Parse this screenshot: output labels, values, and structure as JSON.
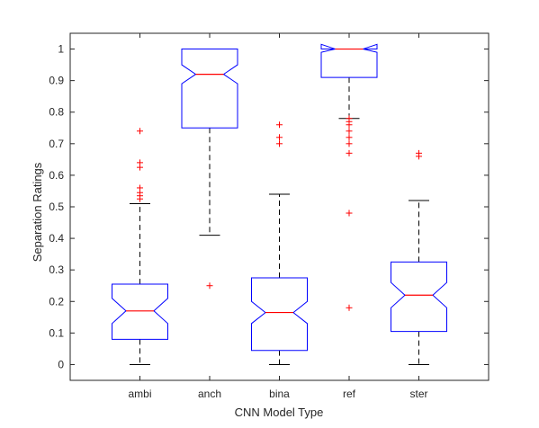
{
  "chart_data": {
    "type": "boxplot",
    "notched": true,
    "xlabel": "CNN Model Type",
    "ylabel": "Separation Ratings",
    "ylim": [
      -0.05,
      1.05
    ],
    "yticks": [
      0,
      0.1,
      0.2,
      0.3,
      0.4,
      0.5,
      0.6,
      0.7,
      0.8,
      0.9,
      1
    ],
    "ytick_labels": [
      "0",
      "0.1",
      "0.2",
      "0.3",
      "0.4",
      "0.5",
      "0.6",
      "0.7",
      "0.8",
      "0.9",
      "1"
    ],
    "categories": [
      "ambi",
      "anch",
      "bina",
      "ref",
      "ster"
    ],
    "grid": false,
    "colors": {
      "box": "#0000ff",
      "median": "#ff0000",
      "whisker": "#000000",
      "outlier": "#ff0000",
      "axis": "#262626"
    },
    "boxes": [
      {
        "category": "ambi",
        "q1": 0.08,
        "median": 0.17,
        "q3": 0.255,
        "notch_low": 0.13,
        "notch_high": 0.21,
        "whisker_low": 0.0,
        "whisker_high": 0.51,
        "outliers": [
          0.525,
          0.535,
          0.545,
          0.56,
          0.625,
          0.64,
          0.74
        ]
      },
      {
        "category": "anch",
        "q1": 0.75,
        "median": 0.92,
        "q3": 1.0,
        "notch_low": 0.89,
        "notch_high": 0.95,
        "whisker_low": 0.41,
        "whisker_high": 1.0,
        "outliers": [
          0.25
        ]
      },
      {
        "category": "bina",
        "q1": 0.045,
        "median": 0.165,
        "q3": 0.275,
        "notch_low": 0.13,
        "notch_high": 0.2,
        "whisker_low": 0.0,
        "whisker_high": 0.54,
        "outliers": [
          0.7,
          0.72,
          0.76
        ]
      },
      {
        "category": "ref",
        "q1": 0.91,
        "median": 1.0,
        "q3": 1.0,
        "notch_low": 0.99,
        "notch_high": 1.015,
        "whisker_low": 0.78,
        "whisker_high": 1.0,
        "outliers": [
          0.18,
          0.48,
          0.67,
          0.7,
          0.72,
          0.74,
          0.76,
          0.77,
          0.78
        ]
      },
      {
        "category": "ster",
        "q1": 0.105,
        "median": 0.22,
        "q3": 0.325,
        "notch_low": 0.18,
        "notch_high": 0.26,
        "whisker_low": 0.0,
        "whisker_high": 0.52,
        "outliers": [
          0.66,
          0.67
        ]
      }
    ]
  }
}
